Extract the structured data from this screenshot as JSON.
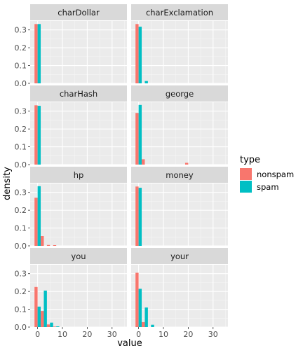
{
  "chart_data": {
    "type": "bar",
    "subtype": "faceted-histogram",
    "xlabel": "value",
    "ylabel": "density",
    "xlim": [
      -3,
      36
    ],
    "ylim": [
      0,
      0.35
    ],
    "x_ticks": [
      0,
      10,
      20,
      30
    ],
    "y_ticks": [
      0.0,
      0.1,
      0.2,
      0.3
    ],
    "y_tick_labels": [
      "0.0",
      "0.1",
      "0.2",
      "0.3"
    ],
    "binwidth": 2.5,
    "grid": true,
    "legend": {
      "title": "type",
      "position": "right",
      "entries": [
        "nonspam",
        "spam"
      ]
    },
    "colors": {
      "nonspam": "#F8766D",
      "spam": "#00BFC4",
      "panel": "#EBEBEB",
      "strip": "#D9D9D9"
    },
    "panels": [
      {
        "label": "charDollar",
        "bars": [
          {
            "type": "nonspam",
            "x": 0.0,
            "density": 0.333
          },
          {
            "type": "spam",
            "x": 0.0,
            "density": 0.333
          }
        ]
      },
      {
        "label": "charExclamation",
        "bars": [
          {
            "type": "nonspam",
            "x": 0.0,
            "density": 0.333
          },
          {
            "type": "spam",
            "x": 0.0,
            "density": 0.318
          },
          {
            "type": "spam",
            "x": 2.5,
            "density": 0.013
          }
        ]
      },
      {
        "label": "charHash",
        "bars": [
          {
            "type": "nonspam",
            "x": 0.0,
            "density": 0.333
          },
          {
            "type": "spam",
            "x": 0.0,
            "density": 0.33
          }
        ]
      },
      {
        "label": "george",
        "bars": [
          {
            "type": "nonspam",
            "x": 0.0,
            "density": 0.29
          },
          {
            "type": "spam",
            "x": 0.0,
            "density": 0.335
          },
          {
            "type": "nonspam",
            "x": 2.5,
            "density": 0.03
          },
          {
            "type": "nonspam",
            "x": 20.0,
            "density": 0.01
          }
        ]
      },
      {
        "label": "hp",
        "bars": [
          {
            "type": "nonspam",
            "x": 0.0,
            "density": 0.27
          },
          {
            "type": "spam",
            "x": 0.0,
            "density": 0.335
          },
          {
            "type": "nonspam",
            "x": 2.5,
            "density": 0.055
          },
          {
            "type": "nonspam",
            "x": 5.0,
            "density": 0.005
          },
          {
            "type": "nonspam",
            "x": 7.5,
            "density": 0.004
          }
        ]
      },
      {
        "label": "money",
        "bars": [
          {
            "type": "nonspam",
            "x": 0.0,
            "density": 0.333
          },
          {
            "type": "spam",
            "x": 0.0,
            "density": 0.326
          }
        ]
      },
      {
        "label": "you",
        "bars": [
          {
            "type": "nonspam",
            "x": 0.0,
            "density": 0.225
          },
          {
            "type": "spam",
            "x": 0.0,
            "density": 0.115
          },
          {
            "type": "nonspam",
            "x": 2.5,
            "density": 0.09
          },
          {
            "type": "spam",
            "x": 2.5,
            "density": 0.205
          },
          {
            "type": "nonspam",
            "x": 5.0,
            "density": 0.015
          },
          {
            "type": "spam",
            "x": 5.0,
            "density": 0.025
          },
          {
            "type": "nonspam",
            "x": 7.5,
            "density": 0.003
          },
          {
            "type": "spam",
            "x": 7.5,
            "density": 0.004
          }
        ]
      },
      {
        "label": "your",
        "bars": [
          {
            "type": "nonspam",
            "x": 0.0,
            "density": 0.305
          },
          {
            "type": "spam",
            "x": 0.0,
            "density": 0.215
          },
          {
            "type": "nonspam",
            "x": 2.5,
            "density": 0.028
          },
          {
            "type": "spam",
            "x": 2.5,
            "density": 0.11
          },
          {
            "type": "spam",
            "x": 5.0,
            "density": 0.013
          }
        ]
      }
    ]
  }
}
